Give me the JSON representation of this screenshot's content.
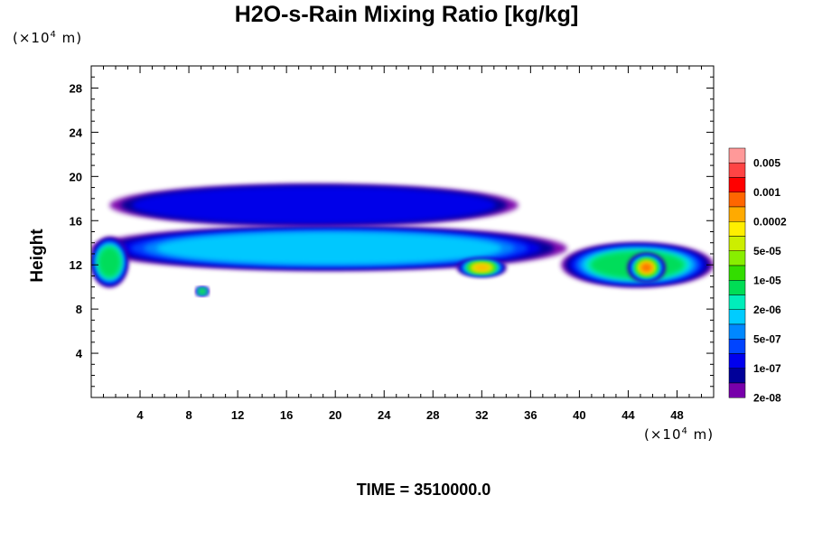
{
  "chart_data": {
    "type": "heatmap",
    "title": "H2O-s-Rain Mixing Ratio [kg/kg]",
    "y_unit": "(×10",
    "x_unit": "(×10",
    "unit_exp": "4",
    "unit_suffix": " m)",
    "ylabel": "Height",
    "xlabel": "",
    "footer": "TIME = 3510000.0",
    "xlim": [
      0,
      51
    ],
    "ylim": [
      0,
      30
    ],
    "x_ticks": [
      "4",
      "8",
      "12",
      "16",
      "20",
      "24",
      "28",
      "32",
      "36",
      "40",
      "44",
      "48"
    ],
    "x_tick_values": [
      4,
      8,
      12,
      16,
      20,
      24,
      28,
      32,
      36,
      40,
      44,
      48
    ],
    "y_ticks": [
      "4",
      "8",
      "12",
      "16",
      "20",
      "24",
      "28"
    ],
    "y_tick_values": [
      4,
      8,
      12,
      16,
      20,
      24,
      28
    ],
    "colorbar_labels": [
      "0.005",
      "0.001",
      "0.0002",
      "5e-05",
      "1e-05",
      "2e-06",
      "5e-07",
      "1e-07",
      "2e-08"
    ],
    "colorbar_colors": [
      "#ff9999",
      "#ff4444",
      "#ff0000",
      "#ff6600",
      "#ffaa00",
      "#ffee00",
      "#ccee00",
      "#88ee00",
      "#33dd00",
      "#00dd55",
      "#00eebb",
      "#00ccff",
      "#0088ff",
      "#0044ff",
      "#0000ee",
      "#000099",
      "#7700aa"
    ],
    "regions": [
      {
        "x": [
          1.5,
          35
        ],
        "y": [
          15.5,
          19.3
        ],
        "level": 14
      },
      {
        "x": [
          0,
          39
        ],
        "y": [
          11.5,
          15.5
        ],
        "level": 11
      },
      {
        "x": [
          0,
          3
        ],
        "y": [
          10,
          14.5
        ],
        "level": 9
      },
      {
        "x": [
          38.5,
          51
        ],
        "y": [
          10,
          14
        ],
        "level": 9
      },
      {
        "x": [
          44,
          47
        ],
        "y": [
          10.5,
          13
        ],
        "level": 3
      },
      {
        "x": [
          30,
          34
        ],
        "y": [
          11,
          12.5
        ],
        "level": 4
      },
      {
        "x": [
          8.6,
          9.6
        ],
        "y": [
          9.3,
          9.9
        ],
        "level": 8
      }
    ]
  }
}
